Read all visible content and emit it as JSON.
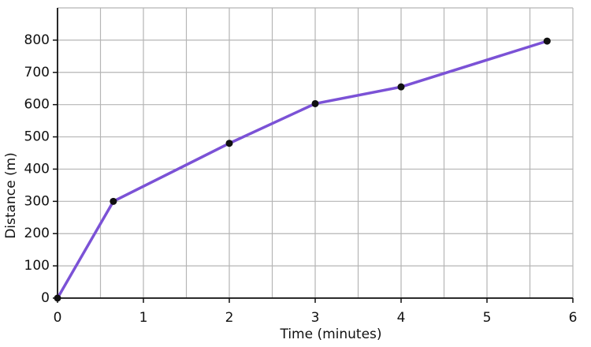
{
  "chart_data": {
    "type": "line",
    "x_label": "Time (minutes)",
    "y_label": "Distance (m)",
    "x": [
      0,
      0.65,
      2,
      3,
      4,
      5.7
    ],
    "series": [
      {
        "color": "#7b52d6",
        "values": [
          0,
          300,
          480,
          603,
          655,
          797
        ]
      }
    ],
    "xlim": [
      0,
      6
    ],
    "xticks": [
      0,
      1,
      2,
      3,
      4,
      5,
      6
    ],
    "ylim": [
      0,
      900
    ],
    "yticks": [
      0,
      100,
      200,
      300,
      400,
      500,
      600,
      700,
      800
    ],
    "xgrid": [
      0.5,
      1,
      1.5,
      2,
      2.5,
      3,
      3.5,
      4,
      4.5,
      5,
      5.5,
      6
    ],
    "grid": true,
    "marker_color": "#111111"
  }
}
